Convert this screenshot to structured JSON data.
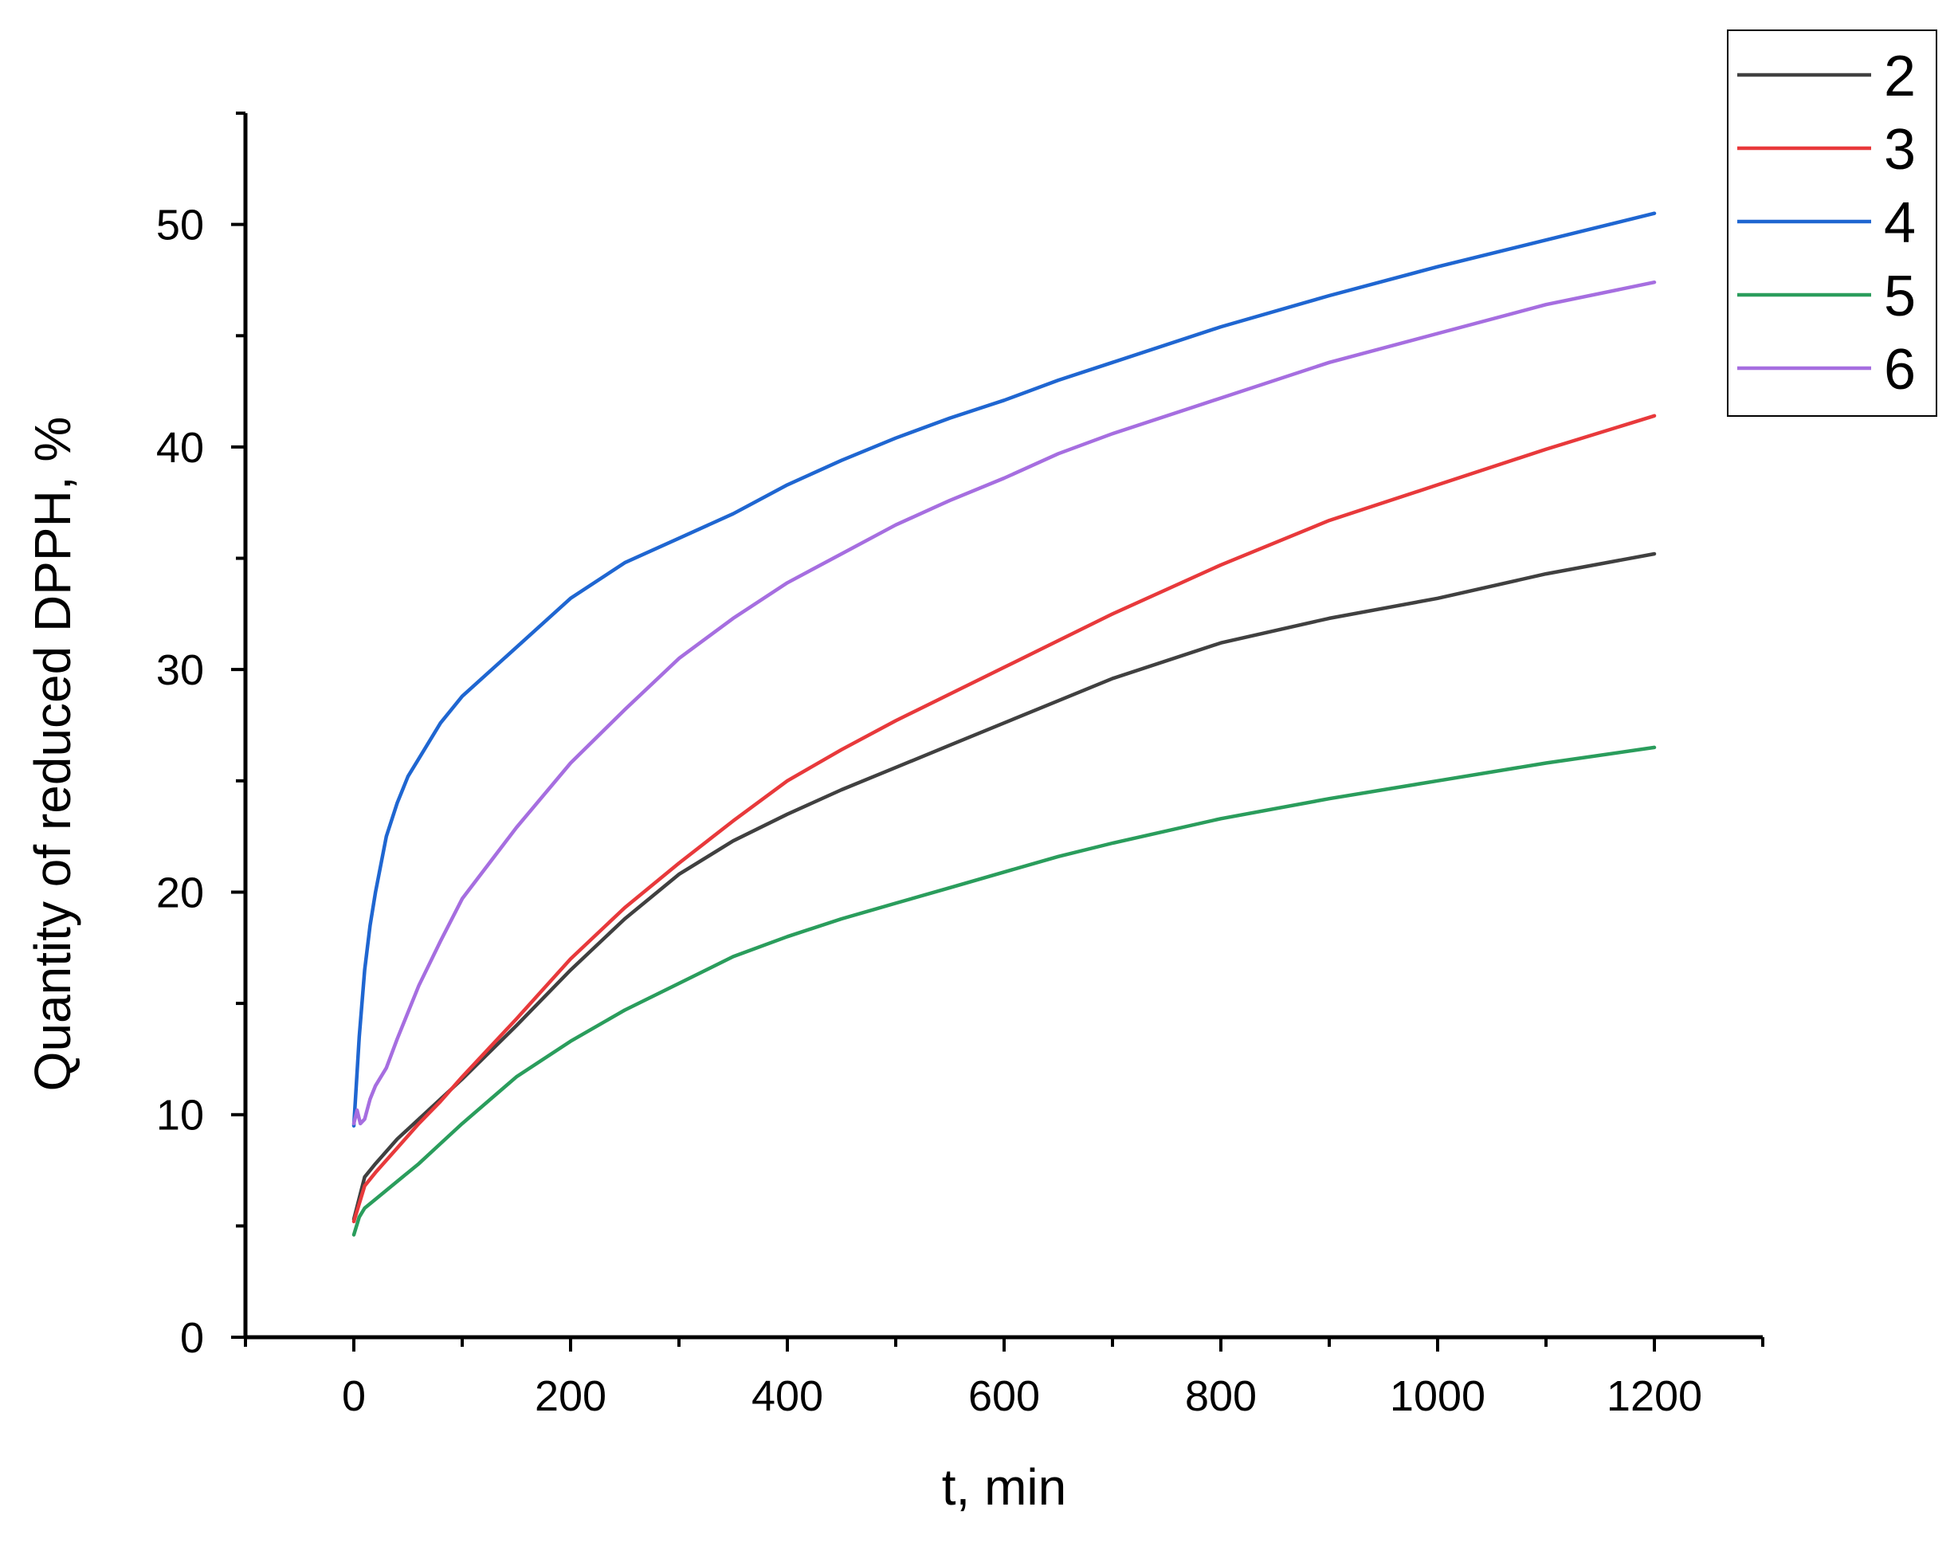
{
  "chart_data": {
    "type": "line",
    "title": "",
    "xlabel": "t, min",
    "ylabel": "Quantity of reduced DPPH, %",
    "xlim": [
      -100,
      1300
    ],
    "ylim": [
      0,
      55
    ],
    "xticks": [
      0,
      200,
      400,
      600,
      800,
      1000,
      1200
    ],
    "xtick_labels": [
      "0",
      "200",
      "400",
      "600",
      "800",
      "1000",
      "1200"
    ],
    "yticks": [
      0,
      10,
      20,
      30,
      40,
      50
    ],
    "ytick_labels": [
      "0",
      "10",
      "20",
      "30",
      "40",
      "50"
    ],
    "grid": false,
    "legend_position": "top-right, outside plot",
    "series": [
      {
        "name": "2",
        "color": "#404040",
        "x": [
          0,
          10,
          20,
          40,
          60,
          80,
          100,
          150,
          200,
          250,
          300,
          350,
          400,
          450,
          500,
          550,
          600,
          650,
          700,
          800,
          900,
          1000,
          1100,
          1200
        ],
        "y": [
          5.3,
          7.2,
          7.8,
          8.9,
          9.8,
          10.7,
          11.6,
          14.0,
          16.5,
          18.8,
          20.8,
          22.3,
          23.5,
          24.6,
          25.6,
          26.6,
          27.6,
          28.6,
          29.6,
          31.2,
          32.3,
          33.2,
          34.3,
          35.2
        ]
      },
      {
        "name": "3",
        "color": "#e8393b",
        "x": [
          0,
          10,
          20,
          40,
          60,
          80,
          100,
          150,
          200,
          250,
          300,
          350,
          400,
          450,
          500,
          550,
          600,
          650,
          700,
          800,
          900,
          1000,
          1100,
          1200
        ],
        "y": [
          5.2,
          6.8,
          7.4,
          8.5,
          9.6,
          10.6,
          11.7,
          14.3,
          17.0,
          19.3,
          21.3,
          23.2,
          25.0,
          26.4,
          27.7,
          28.9,
          30.1,
          31.3,
          32.5,
          34.7,
          36.7,
          38.3,
          39.9,
          41.4
        ]
      },
      {
        "name": "4",
        "color": "#1f66d1",
        "x": [
          0,
          5,
          10,
          15,
          20,
          30,
          40,
          50,
          60,
          80,
          100,
          150,
          200,
          250,
          300,
          350,
          400,
          450,
          500,
          550,
          600,
          650,
          700,
          800,
          900,
          1000,
          1100,
          1200
        ],
        "y": [
          9.5,
          13.5,
          16.5,
          18.5,
          20.0,
          22.5,
          24.0,
          25.2,
          26.0,
          27.6,
          28.8,
          31.0,
          33.2,
          34.8,
          35.9,
          37.0,
          38.3,
          39.4,
          40.4,
          41.3,
          42.1,
          43.0,
          43.8,
          45.4,
          46.8,
          48.1,
          49.3,
          50.5
        ]
      },
      {
        "name": "5",
        "color": "#2a9d5c",
        "x": [
          0,
          5,
          10,
          20,
          40,
          60,
          80,
          100,
          150,
          200,
          250,
          300,
          350,
          400,
          450,
          500,
          550,
          600,
          650,
          700,
          800,
          900,
          1000,
          1100,
          1200
        ],
        "y": [
          4.6,
          5.4,
          5.8,
          6.2,
          7.0,
          7.8,
          8.7,
          9.6,
          11.7,
          13.3,
          14.7,
          15.9,
          17.1,
          18.0,
          18.8,
          19.5,
          20.2,
          20.9,
          21.6,
          22.2,
          23.3,
          24.2,
          25.0,
          25.8,
          26.5
        ]
      },
      {
        "name": "6",
        "color": "#a66ee0",
        "x": [
          0,
          3,
          6,
          10,
          15,
          20,
          30,
          40,
          60,
          80,
          100,
          150,
          200,
          250,
          300,
          350,
          400,
          450,
          500,
          550,
          600,
          650,
          700,
          800,
          900,
          1000,
          1100,
          1200
        ],
        "y": [
          9.6,
          10.2,
          9.6,
          9.8,
          10.7,
          11.3,
          12.1,
          13.4,
          15.8,
          17.8,
          19.7,
          22.9,
          25.8,
          28.2,
          30.5,
          32.3,
          33.9,
          35.2,
          36.5,
          37.6,
          38.6,
          39.7,
          40.6,
          42.2,
          43.8,
          45.1,
          46.4,
          47.4
        ]
      }
    ]
  }
}
